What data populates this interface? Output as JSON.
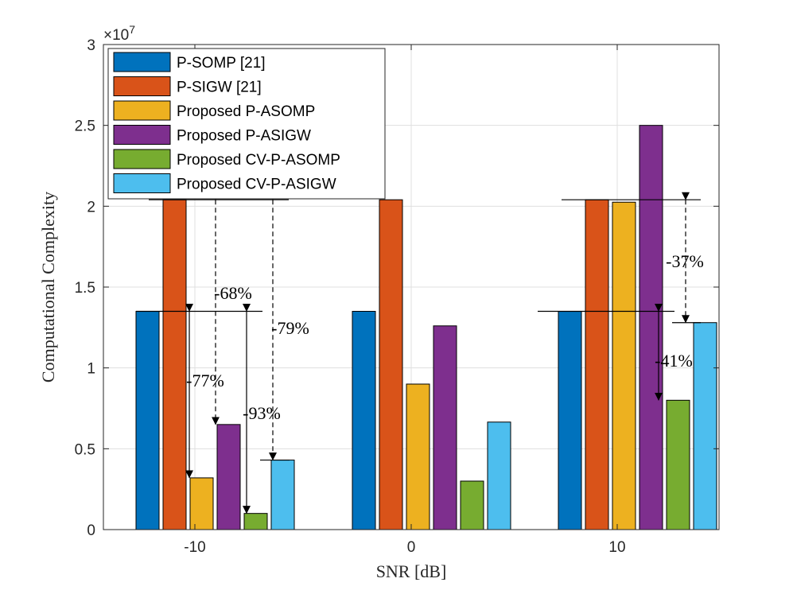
{
  "chart_data": {
    "type": "bar",
    "categories": [
      "-10",
      "0",
      "10"
    ],
    "series": [
      {
        "name": "P-SOMP [21]",
        "color": "#0072BD",
        "values": [
          13500000,
          13500000,
          13500000
        ]
      },
      {
        "name": "P-SIGW [21]",
        "color": "#D95319",
        "values": [
          20400000,
          20400000,
          20400000
        ]
      },
      {
        "name": "Proposed P-ASOMP",
        "color": "#EDB120",
        "values": [
          3200000,
          9000000,
          20250000
        ]
      },
      {
        "name": "Proposed P-ASIGW",
        "color": "#7E2F8E",
        "values": [
          6500000,
          12600000,
          25000000
        ]
      },
      {
        "name": "Proposed CV-P-ASOMP",
        "color": "#77AC30",
        "values": [
          1000000,
          3000000,
          8000000
        ]
      },
      {
        "name": "Proposed CV-P-ASIGW",
        "color": "#4DBEEE",
        "values": [
          4300000,
          6650000,
          12800000
        ]
      }
    ],
    "xlabel": "SNR [dB]",
    "ylabel": "Computational Complexity",
    "ylim": [
      0,
      30000000
    ],
    "yticks": [
      "0",
      "0.5",
      "1",
      "1.5",
      "2",
      "2.5",
      "3"
    ],
    "y_exponent": "×10",
    "y_exponent_power": "7",
    "grid": true,
    "legend_position": "top-left",
    "annotations": [
      "-68%",
      "-79%",
      "-77%",
      "-93%",
      "-37%",
      "-41%"
    ]
  }
}
